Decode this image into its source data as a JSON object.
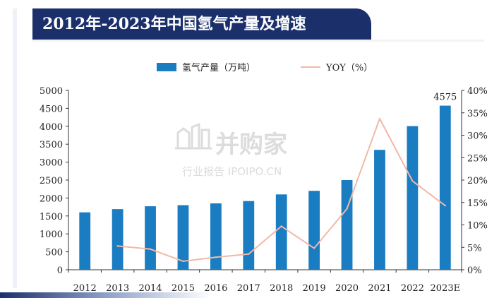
{
  "title": "2012年-2023年中国氢气产量及增速",
  "watermark": {
    "main": "并购家",
    "sub": "行业报告 IPOIPO.CN"
  },
  "chart_data": {
    "type": "bar",
    "categories": [
      "2012",
      "2013",
      "2014",
      "2015",
      "2016",
      "2017",
      "2018",
      "2019",
      "2020",
      "2021",
      "2022",
      "2023E"
    ],
    "series": [
      {
        "name": "氢气产量（万吨）",
        "type": "bar",
        "axis": "left",
        "color": "#1a7cc1",
        "values": [
          1600,
          1690,
          1770,
          1800,
          1850,
          1915,
          2100,
          2200,
          2500,
          3342,
          4004,
          4575
        ]
      },
      {
        "name": "YOY（%）",
        "type": "line",
        "axis": "right",
        "color": "#f2b8a8",
        "values": [
          null,
          5.3,
          4.6,
          1.9,
          2.8,
          3.5,
          9.7,
          4.8,
          13.6,
          33.7,
          19.8,
          14.3
        ]
      }
    ],
    "data_labels": [
      {
        "index": 11,
        "text": "4575"
      }
    ],
    "y_left": {
      "min": 0,
      "max": 5000,
      "ticks": [
        "0",
        "500",
        "1000",
        "1500",
        "2000",
        "2500",
        "3000",
        "3500",
        "4000",
        "4500",
        "5000"
      ]
    },
    "y_right": {
      "min": 0,
      "max": 40,
      "ticks": [
        "0%",
        "5%",
        "10%",
        "15%",
        "20%",
        "25%",
        "30%",
        "35%",
        "40%"
      ]
    },
    "legend_position": "top-center",
    "grid": false
  }
}
